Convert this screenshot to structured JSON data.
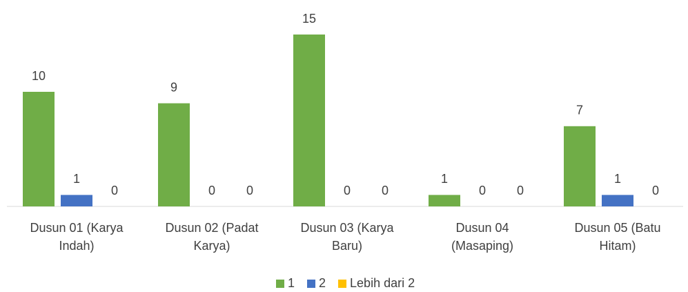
{
  "chart_data": {
    "type": "bar",
    "categories": [
      "Dusun 01 (Karya Indah)",
      "Dusun 02 (Padat Karya)",
      "Dusun 03 (Karya Baru)",
      "Dusun 04 (Masaping)",
      "Dusun 05 (Batu Hitam)"
    ],
    "series": [
      {
        "name": "1",
        "color": "#70ad47",
        "values": [
          10,
          9,
          15,
          1,
          7
        ]
      },
      {
        "name": "2",
        "color": "#4472c4",
        "values": [
          1,
          0,
          0,
          0,
          1
        ]
      },
      {
        "name": "Lebih dari 2",
        "color": "#ffc000",
        "values": [
          0,
          0,
          0,
          0,
          0
        ]
      }
    ],
    "legend": "bottom"
  }
}
